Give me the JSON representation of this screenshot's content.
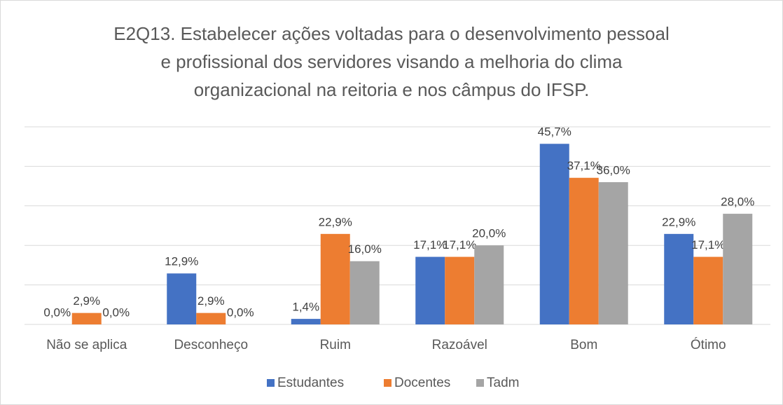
{
  "chart_data": {
    "type": "bar",
    "title": [
      "E2Q13. Estabelecer ações voltadas para o desenvolvimento pessoal",
      "e profissional dos servidores visando a melhoria do clima",
      "organizacional na reitoria e nos câmpus do IFSP."
    ],
    "categories": [
      "Não se aplica",
      "Desconheço",
      "Ruim",
      "Razoável",
      "Bom",
      "Ótimo"
    ],
    "series": [
      {
        "name": "Estudantes",
        "color": "#4472c4",
        "values": [
          0.0,
          12.9,
          1.4,
          17.1,
          45.7,
          22.9
        ],
        "value_labels": [
          "0,0%",
          "12,9%",
          "1,4%",
          "17,1%",
          "45,7%",
          "22,9%"
        ]
      },
      {
        "name": "Docentes",
        "color": "#ed7d31",
        "values": [
          2.9,
          2.9,
          22.9,
          17.1,
          37.1,
          17.1
        ],
        "value_labels": [
          "2,9%",
          "2,9%",
          "22,9%",
          "17,1%",
          "37,1%",
          "17,1%"
        ]
      },
      {
        "name": "Tadm",
        "color": "#a5a5a5",
        "values": [
          0.0,
          0.0,
          16.0,
          20.0,
          36.0,
          28.0
        ],
        "value_labels": [
          "0,0%",
          "0,0%",
          "16,0%",
          "20,0%",
          "36,0%",
          "28,0%"
        ]
      }
    ],
    "ylim": [
      0,
      50
    ],
    "yticks": [
      0,
      10,
      20,
      30,
      40,
      50
    ],
    "grid": true,
    "legend": "bottom"
  }
}
